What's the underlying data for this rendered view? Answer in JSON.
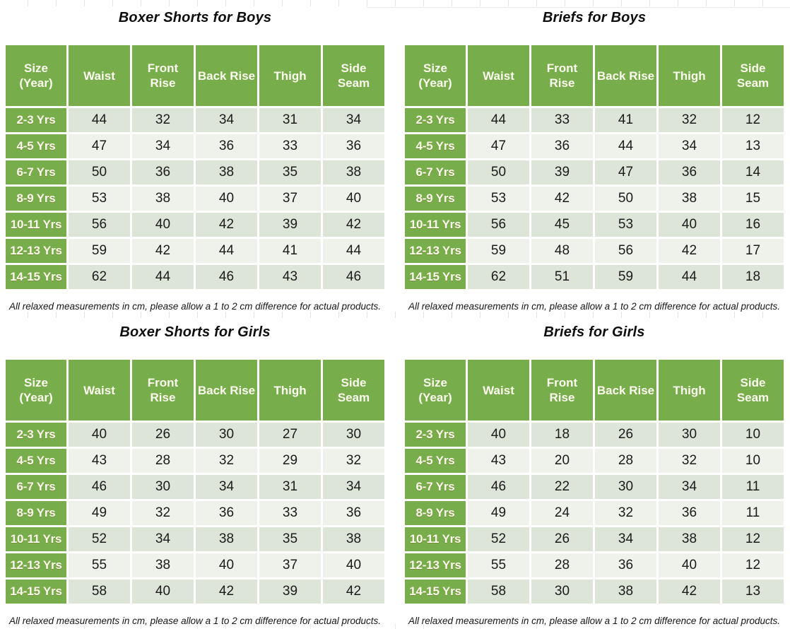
{
  "colors": {
    "header_green": "#77ae4b",
    "header_text": "#fcfaef",
    "label_text": "#fbf8ec",
    "value_text": "#1b1b1b",
    "row_dark": "#dde4d8",
    "row_light": "#eef2ea",
    "tick_color": "#e4e4e4"
  },
  "sections": [
    {
      "title": "Boxer Shorts for Boys",
      "footnote": "All relaxed measurements in cm, please allow a 1 to 2 cm difference for actual products.",
      "table": {
        "columns": [
          [
            "Size",
            "(Year)"
          ],
          [
            "Waist"
          ],
          [
            "Front",
            "Rise"
          ],
          [
            "Back Rise"
          ],
          [
            "Thigh"
          ],
          [
            "Side",
            "Seam"
          ]
        ],
        "rows": [
          {
            "size": "2-3 Yrs",
            "values": [
              44,
              32,
              34,
              31,
              34
            ]
          },
          {
            "size": "4-5 Yrs",
            "values": [
              47,
              34,
              36,
              33,
              36
            ]
          },
          {
            "size": "6-7 Yrs",
            "values": [
              50,
              36,
              38,
              35,
              38
            ]
          },
          {
            "size": "8-9 Yrs",
            "values": [
              53,
              38,
              40,
              37,
              40
            ]
          },
          {
            "size": "10-11 Yrs",
            "values": [
              56,
              40,
              42,
              39,
              42
            ]
          },
          {
            "size": "12-13 Yrs",
            "values": [
              59,
              42,
              44,
              41,
              44
            ]
          },
          {
            "size": "14-15 Yrs",
            "values": [
              62,
              44,
              46,
              43,
              46
            ]
          }
        ]
      }
    },
    {
      "title": "Briefs for Boys",
      "footnote": "All relaxed measurements in cm, please allow a 1 to 2 cm difference for actual products.",
      "table": {
        "columns": [
          [
            "Size",
            "(Year)"
          ],
          [
            "Waist"
          ],
          [
            "Front",
            "Rise"
          ],
          [
            "Back Rise"
          ],
          [
            "Thigh"
          ],
          [
            "Side",
            "Seam"
          ]
        ],
        "rows": [
          {
            "size": "2-3 Yrs",
            "values": [
              44,
              33,
              41,
              32,
              12
            ]
          },
          {
            "size": "4-5 Yrs",
            "values": [
              47,
              36,
              44,
              34,
              13
            ]
          },
          {
            "size": "6-7 Yrs",
            "values": [
              50,
              39,
              47,
              36,
              14
            ]
          },
          {
            "size": "8-9 Yrs",
            "values": [
              53,
              42,
              50,
              38,
              15
            ]
          },
          {
            "size": "10-11 Yrs",
            "values": [
              56,
              45,
              53,
              40,
              16
            ]
          },
          {
            "size": "12-13 Yrs",
            "values": [
              59,
              48,
              56,
              42,
              17
            ]
          },
          {
            "size": "14-15 Yrs",
            "values": [
              62,
              51,
              59,
              44,
              18
            ]
          }
        ]
      }
    },
    {
      "title": "Boxer Shorts for Girls",
      "footnote": "All relaxed measurements in cm, please allow a 1 to 2 cm difference for actual products.",
      "table": {
        "columns": [
          [
            "Size",
            "(Year)"
          ],
          [
            "Waist"
          ],
          [
            "Front",
            "Rise"
          ],
          [
            "Back Rise"
          ],
          [
            "Thigh"
          ],
          [
            "Side",
            "Seam"
          ]
        ],
        "rows": [
          {
            "size": "2-3 Yrs",
            "values": [
              40,
              26,
              30,
              27,
              30
            ]
          },
          {
            "size": "4-5 Yrs",
            "values": [
              43,
              28,
              32,
              29,
              32
            ]
          },
          {
            "size": "6-7 Yrs",
            "values": [
              46,
              30,
              34,
              31,
              34
            ]
          },
          {
            "size": "8-9 Yrs",
            "values": [
              49,
              32,
              36,
              33,
              36
            ]
          },
          {
            "size": "10-11 Yrs",
            "values": [
              52,
              34,
              38,
              35,
              38
            ]
          },
          {
            "size": "12-13 Yrs",
            "values": [
              55,
              38,
              40,
              37,
              40
            ]
          },
          {
            "size": "14-15 Yrs",
            "values": [
              58,
              40,
              42,
              39,
              42
            ]
          }
        ]
      }
    },
    {
      "title": "Briefs for Girls",
      "footnote": "All relaxed measurements in cm, please allow a 1 to 2 cm difference for actual products.",
      "table": {
        "columns": [
          [
            "Size",
            "(Year)"
          ],
          [
            "Waist"
          ],
          [
            "Front",
            "Rise"
          ],
          [
            "Back Rise"
          ],
          [
            "Thigh"
          ],
          [
            "Side",
            "Seam"
          ]
        ],
        "rows": [
          {
            "size": "2-3 Yrs",
            "values": [
              40,
              18,
              26,
              30,
              10
            ]
          },
          {
            "size": "4-5 Yrs",
            "values": [
              43,
              20,
              28,
              32,
              10
            ]
          },
          {
            "size": "6-7 Yrs",
            "values": [
              46,
              22,
              30,
              34,
              11
            ]
          },
          {
            "size": "8-9 Yrs",
            "values": [
              49,
              24,
              32,
              36,
              11
            ]
          },
          {
            "size": "10-11 Yrs",
            "values": [
              52,
              26,
              34,
              38,
              12
            ]
          },
          {
            "size": "12-13 Yrs",
            "values": [
              55,
              28,
              36,
              40,
              12
            ]
          },
          {
            "size": "14-15 Yrs",
            "values": [
              58,
              30,
              38,
              42,
              13
            ]
          }
        ]
      }
    }
  ]
}
